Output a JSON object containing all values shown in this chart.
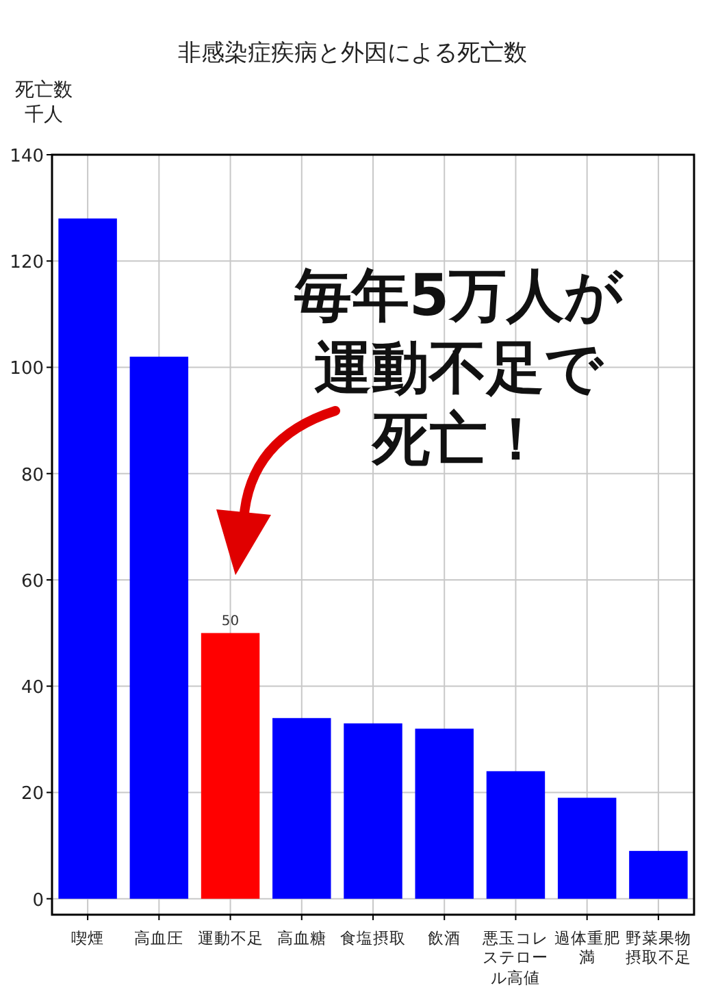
{
  "chart_data": {
    "type": "bar",
    "title": "非感染症疾病と外因による死亡数",
    "ylabel": "死亡数千人",
    "categories": [
      "喫煙",
      "高血圧",
      "運動不足",
      "高血糖",
      "食塩摂取",
      "飲酒",
      "悪玉コレステロール高値",
      "過体重肥満",
      "野菜果物摂取不足"
    ],
    "values": [
      128,
      102,
      50,
      34,
      33,
      32,
      24,
      19,
      9
    ],
    "colors": [
      "#0000ff",
      "#0000ff",
      "#ff0000",
      "#0000ff",
      "#0000ff",
      "#0000ff",
      "#0000ff",
      "#0000ff",
      "#0000ff"
    ],
    "value_labels": [
      null,
      null,
      "50",
      null,
      null,
      null,
      null,
      null,
      null
    ],
    "ylim": [
      -3,
      140
    ],
    "yticks": [
      0,
      20,
      40,
      60,
      80,
      100,
      120,
      140
    ],
    "grid": true,
    "annotations": [
      "毎年5万人が運動不足で死亡！"
    ]
  }
}
